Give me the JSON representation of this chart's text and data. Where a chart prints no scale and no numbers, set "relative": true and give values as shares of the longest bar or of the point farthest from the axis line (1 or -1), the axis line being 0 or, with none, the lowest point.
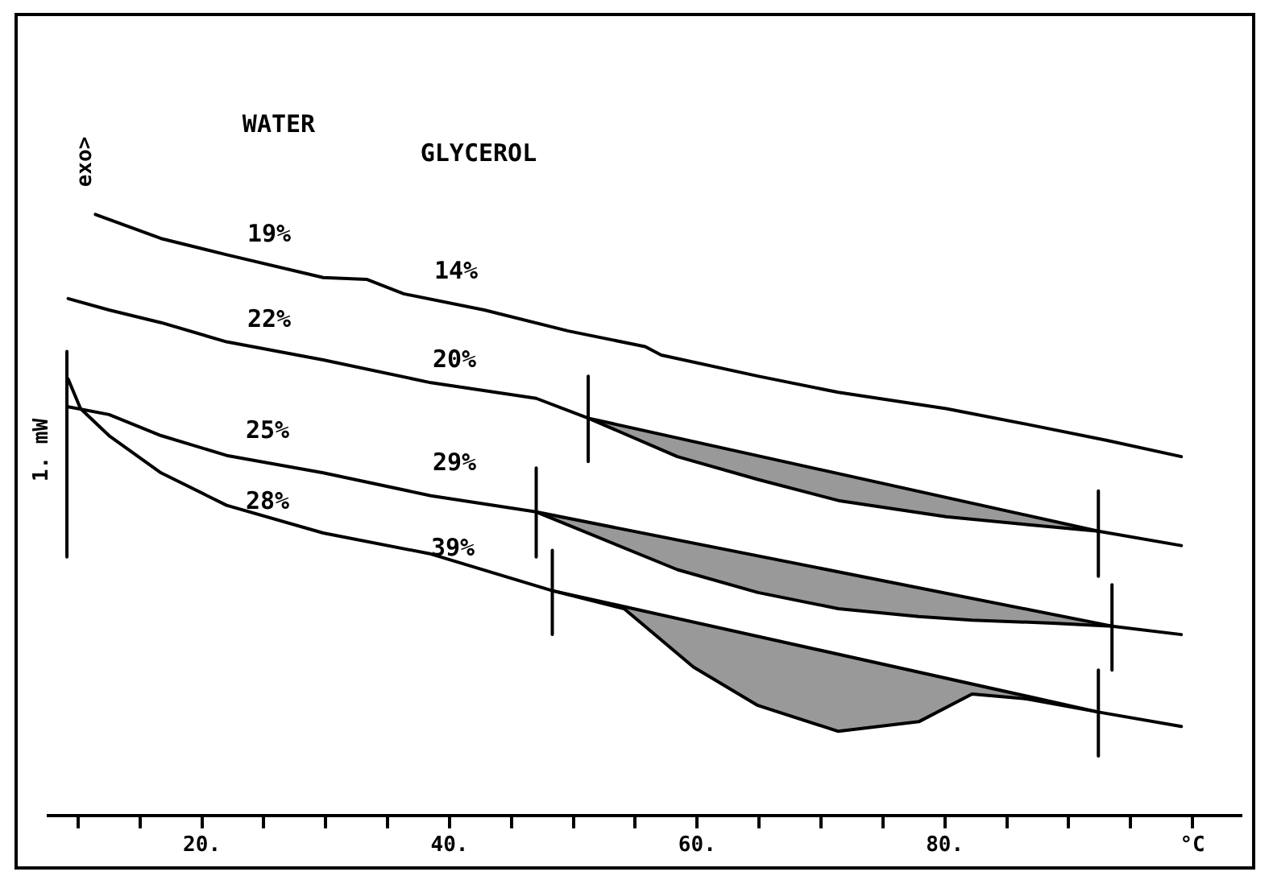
{
  "chart_data": {
    "type": "line",
    "relative": true,
    "xlabel": "°C",
    "ylabel": "1. mW",
    "grid": false,
    "legend": false,
    "marker": "none",
    "line_style": "solid",
    "tick_labels": "x",
    "xlim": [
      7.6,
      103.9
    ],
    "xticks": [
      {
        "value": 10,
        "label": null
      },
      {
        "value": 15,
        "label": null
      },
      {
        "value": 20,
        "label": "20."
      },
      {
        "value": 25,
        "label": null
      },
      {
        "value": 30,
        "label": null
      },
      {
        "value": 35,
        "label": null
      },
      {
        "value": 40,
        "label": "40."
      },
      {
        "value": 45,
        "label": null
      },
      {
        "value": 50,
        "label": null
      },
      {
        "value": 55,
        "label": null
      },
      {
        "value": 60,
        "label": "60."
      },
      {
        "value": 65,
        "label": null
      },
      {
        "value": 70,
        "label": null
      },
      {
        "value": 75,
        "label": null
      },
      {
        "value": 80,
        "label": "80."
      },
      {
        "value": 85,
        "label": null
      },
      {
        "value": 90,
        "label": null
      },
      {
        "value": 95,
        "label": null
      },
      {
        "value": 100,
        "label": "°C"
      }
    ],
    "series": [
      {
        "color": "#000000",
        "x": [
          11.4,
          16.7,
          22.0,
          29.8,
          33.3,
          36.3,
          42.8,
          49.6,
          55.8,
          57.1,
          64.9,
          71.4,
          80.1,
          86.6,
          93.1,
          99.1
        ],
        "values": [
          1.0,
          0.96,
          0.933,
          0.895,
          0.892,
          0.868,
          0.841,
          0.806,
          0.78,
          0.766,
          0.731,
          0.704,
          0.677,
          0.651,
          0.624,
          0.597
        ]
      },
      {
        "color": "#000000",
        "x": [
          9.2,
          12.5,
          16.7,
          22.0,
          29.8,
          38.5,
          47.0,
          51.2,
          58.4,
          64.9,
          71.4,
          80.1,
          86.6,
          92.4,
          99.1
        ],
        "values": [
          0.86,
          0.841,
          0.82,
          0.788,
          0.758,
          0.72,
          0.694,
          0.661,
          0.597,
          0.559,
          0.524,
          0.497,
          0.484,
          0.473,
          0.449
        ],
        "lower": [
          null,
          null,
          null,
          null,
          null,
          null,
          null,
          0.661,
          0.597,
          0.559,
          0.524,
          0.497,
          0.484,
          0.473,
          null
        ],
        "upper": [
          null,
          null,
          null,
          null,
          null,
          null,
          null,
          0.661,
          0.628,
          0.598,
          0.569,
          0.529,
          0.499,
          0.473,
          null
        ]
      },
      {
        "color": "#000000",
        "x": [
          51.2,
          92.4
        ],
        "values": [
          0.661,
          0.473
        ]
      },
      {
        "color": "#000000",
        "x": [
          9.2,
          12.5,
          16.7,
          22.0,
          29.8,
          38.5,
          47.0,
          58.4,
          64.9,
          71.4,
          77.9,
          82.2,
          88.7,
          93.5,
          99.1
        ],
        "values": [
          0.68,
          0.667,
          0.632,
          0.599,
          0.57,
          0.532,
          0.505,
          0.409,
          0.371,
          0.344,
          0.331,
          0.325,
          0.32,
          0.315,
          0.301
        ],
        "lower": [
          null,
          null,
          null,
          null,
          null,
          null,
          0.505,
          0.409,
          0.371,
          0.344,
          0.331,
          0.325,
          0.32,
          0.315,
          null
        ],
        "upper": [
          null,
          null,
          null,
          null,
          null,
          null,
          0.505,
          0.458,
          0.432,
          0.405,
          0.379,
          0.361,
          0.335,
          0.315,
          null
        ]
      },
      {
        "color": "#000000",
        "x": [
          47.0,
          93.5
        ],
        "values": [
          0.505,
          0.315
        ]
      },
      {
        "color": "#000000",
        "x": [
          9.2,
          10.2,
          12.5,
          16.7,
          22.0,
          29.8,
          38.5,
          48.3,
          54.1,
          59.7,
          64.9,
          71.4,
          77.9,
          82.2,
          86.6,
          92.4,
          99.1
        ],
        "values": [
          0.726,
          0.677,
          0.632,
          0.57,
          0.516,
          0.47,
          0.435,
          0.374,
          0.344,
          0.247,
          0.183,
          0.14,
          0.156,
          0.202,
          0.194,
          0.172,
          0.148
        ],
        "lower": [
          null,
          null,
          null,
          null,
          null,
          null,
          null,
          0.374,
          0.344,
          0.247,
          0.183,
          0.14,
          0.156,
          0.202,
          0.194,
          0.172,
          null
        ],
        "upper": [
          null,
          null,
          null,
          null,
          null,
          null,
          null,
          0.374,
          0.347,
          0.322,
          0.298,
          0.268,
          0.238,
          0.219,
          0.199,
          0.172,
          null
        ]
      },
      {
        "color": "#000000",
        "x": [
          48.3,
          92.4
        ],
        "values": [
          0.374,
          0.172
        ]
      },
      {
        "color": "#000000",
        "x": [
          51.2,
          51.2
        ],
        "values": [
          0.731,
          0.589
        ]
      },
      {
        "color": "#000000",
        "x": [
          92.4,
          92.4
        ],
        "values": [
          0.54,
          0.398
        ]
      },
      {
        "color": "#000000",
        "x": [
          47.0,
          47.0
        ],
        "values": [
          0.578,
          0.43
        ]
      },
      {
        "color": "#000000",
        "x": [
          93.5,
          93.5
        ],
        "values": [
          0.384,
          0.242
        ]
      },
      {
        "color": "#000000",
        "x": [
          48.3,
          48.3
        ],
        "values": [
          0.441,
          0.301
        ]
      },
      {
        "color": "#000000",
        "x": [
          92.4,
          92.4
        ],
        "values": [
          0.242,
          0.099
        ]
      },
      {
        "color": "#000000",
        "x": [
          9.1,
          9.1
        ],
        "values": [
          0.772,
          0.43
        ]
      }
    ],
    "annotations": [
      "exo>",
      "WATER",
      "GLYCEROL",
      "19%",
      "14%",
      "22%",
      "20%",
      "25%",
      "29%",
      "28%",
      "39%"
    ]
  }
}
